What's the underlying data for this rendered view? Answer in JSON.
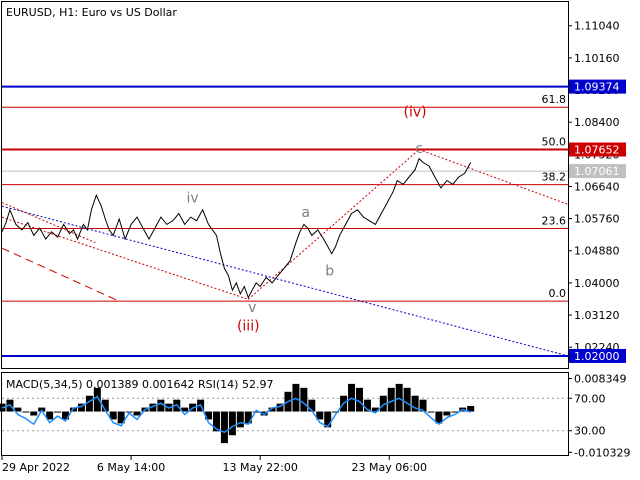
{
  "header": {
    "title": "EURUSD, H1:  Euro vs US Dollar"
  },
  "chart_data": {
    "type": "line",
    "symbol": "EURUSD",
    "timeframe": "H1",
    "description": "Euro vs US Dollar",
    "ylim": [
      1.0167,
      1.1169
    ],
    "price_ticks": [
      "1.11040",
      "1.10160",
      "1.09280",
      "1.08400",
      "1.07520",
      "1.06640",
      "1.05760",
      "1.04880",
      "1.04000",
      "1.03120",
      "1.02240"
    ],
    "time_labels": [
      {
        "label": "29 Apr 2022",
        "t": 0
      },
      {
        "label": "6 May 14:00",
        "t": 130
      },
      {
        "label": "13 May 22:00",
        "t": 260
      },
      {
        "label": "23 May 06:00",
        "t": 390
      }
    ],
    "t_range": [
      0,
      570
    ],
    "price_series": [
      [
        0,
        1.054
      ],
      [
        4,
        1.0565
      ],
      [
        8,
        1.06
      ],
      [
        14,
        1.056
      ],
      [
        20,
        1.0545
      ],
      [
        26,
        1.0565
      ],
      [
        32,
        1.053
      ],
      [
        38,
        1.055
      ],
      [
        44,
        1.052
      ],
      [
        50,
        1.054
      ],
      [
        56,
        1.0525
      ],
      [
        62,
        1.056
      ],
      [
        68,
        1.0535
      ],
      [
        72,
        1.0545
      ],
      [
        76,
        1.052
      ],
      [
        82,
        1.056
      ],
      [
        86,
        1.0545
      ],
      [
        90,
        1.06
      ],
      [
        95,
        1.064
      ],
      [
        100,
        1.061
      ],
      [
        104,
        1.0575
      ],
      [
        108,
        1.0545
      ],
      [
        112,
        1.053
      ],
      [
        118,
        1.0575
      ],
      [
        124,
        1.052
      ],
      [
        130,
        1.056
      ],
      [
        136,
        1.058
      ],
      [
        142,
        1.055
      ],
      [
        148,
        1.052
      ],
      [
        154,
        1.055
      ],
      [
        160,
        1.058
      ],
      [
        166,
        1.056
      ],
      [
        172,
        1.057
      ],
      [
        178,
        1.059
      ],
      [
        184,
        1.056
      ],
      [
        190,
        1.058
      ],
      [
        196,
        1.057
      ],
      [
        202,
        1.06
      ],
      [
        208,
        1.056
      ],
      [
        212,
        1.0545
      ],
      [
        216,
        1.053
      ],
      [
        220,
        1.048
      ],
      [
        224,
        1.044
      ],
      [
        228,
        1.042
      ],
      [
        232,
        1.038
      ],
      [
        236,
        1.04
      ],
      [
        240,
        1.037
      ],
      [
        244,
        1.039
      ],
      [
        248,
        1.036
      ],
      [
        252,
        1.038
      ],
      [
        256,
        1.04
      ],
      [
        260,
        1.039
      ],
      [
        266,
        1.0415
      ],
      [
        272,
        1.04
      ],
      [
        278,
        1.042
      ],
      [
        284,
        1.044
      ],
      [
        290,
        1.046
      ],
      [
        296,
        1.051
      ],
      [
        300,
        1.054
      ],
      [
        304,
        1.056
      ],
      [
        308,
        1.055
      ],
      [
        312,
        1.053
      ],
      [
        318,
        1.0545
      ],
      [
        324,
        1.052
      ],
      [
        328,
        1.05
      ],
      [
        332,
        1.048
      ],
      [
        336,
        1.05
      ],
      [
        340,
        1.053
      ],
      [
        346,
        1.056
      ],
      [
        352,
        1.059
      ],
      [
        358,
        1.06
      ],
      [
        364,
        1.058
      ],
      [
        370,
        1.057
      ],
      [
        376,
        1.056
      ],
      [
        382,
        1.059
      ],
      [
        388,
        1.062
      ],
      [
        394,
        1.065
      ],
      [
        398,
        1.068
      ],
      [
        404,
        1.067
      ],
      [
        410,
        1.069
      ],
      [
        416,
        1.071
      ],
      [
        420,
        1.074
      ],
      [
        424,
        1.073
      ],
      [
        430,
        1.072
      ],
      [
        436,
        1.069
      ],
      [
        442,
        1.066
      ],
      [
        448,
        1.068
      ],
      [
        454,
        1.067
      ],
      [
        460,
        1.069
      ],
      [
        466,
        1.07
      ],
      [
        472,
        1.073
      ]
    ],
    "horizontal_levels": [
      {
        "price": 1.09374,
        "label": "1.09374",
        "color": "#0000cc"
      },
      {
        "price": 1.07652,
        "label": "1.07652",
        "color": "#cc0000"
      },
      {
        "price": 1.02,
        "label": "1.02000",
        "color": "#0000cc"
      }
    ],
    "current_price": {
      "price": 1.07061,
      "label": "1.07061",
      "color": "#c0c0c0"
    },
    "fibonacci": {
      "color": "#cc0000",
      "levels": [
        {
          "ratio": "61.8",
          "price": 1.0881
        },
        {
          "ratio": "50.0",
          "price": 1.07652
        },
        {
          "ratio": "38.2",
          "price": 1.0669
        },
        {
          "ratio": "23.6",
          "price": 1.0549
        },
        {
          "ratio": "0.0",
          "price": 1.035
        }
      ]
    },
    "wave_labels": [
      {
        "text": "(iv)",
        "t": 416,
        "price": 1.0855,
        "color": "#cc0000"
      },
      {
        "text": "(iii)",
        "t": 248,
        "price": 1.027,
        "color": "#cc0000"
      },
      {
        "text": "iv",
        "t": 192,
        "price": 1.062,
        "color": "#808080"
      },
      {
        "text": "v",
        "t": 252,
        "price": 1.032,
        "color": "#808080"
      },
      {
        "text": "a",
        "t": 306,
        "price": 1.058,
        "color": "#808080"
      },
      {
        "text": "b",
        "t": 330,
        "price": 1.042,
        "color": "#808080"
      },
      {
        "text": "c",
        "t": 420,
        "price": 1.0755,
        "color": "#808080"
      }
    ],
    "trend_lines": [
      {
        "color": "#0000cc",
        "style": "dotted",
        "t1": 0,
        "p1": 1.061,
        "t2": 570,
        "p2": 1.02
      },
      {
        "color": "#cc0000",
        "style": "dotted",
        "t1": 0,
        "p1": 1.058,
        "t2": 248,
        "p2": 1.0355
      },
      {
        "color": "#cc0000",
        "style": "dotted",
        "t1": 248,
        "p1": 1.0355,
        "t2": 420,
        "p2": 1.0765
      },
      {
        "color": "#cc0000",
        "style": "dotted",
        "t1": 420,
        "p1": 1.0765,
        "t2": 570,
        "p2": 1.0615
      },
      {
        "color": "#cc0000",
        "style": "dashed",
        "t1": 0,
        "p1": 1.0495,
        "t2": 118,
        "p2": 1.035
      },
      {
        "color": "#cc0000",
        "style": "dotted",
        "t1": 0,
        "p1": 1.062,
        "t2": 94,
        "p2": 1.051
      }
    ],
    "indicator": {
      "label": "MACD(5,34,5) 0.001389 0.001642 RSI(14) 52.97",
      "ylim": [
        -0.011,
        0.0095
      ],
      "ticks": [
        "0.008349",
        "70.00",
        "30.00",
        "-0.010329"
      ],
      "macd_color": "#000000",
      "rsi_color": "#1e90ff",
      "macd_series": [
        [
          0,
          0.002
        ],
        [
          8,
          0.003
        ],
        [
          16,
          0.001
        ],
        [
          24,
          0.0
        ],
        [
          32,
          -0.001
        ],
        [
          40,
          0.001
        ],
        [
          48,
          -0.002
        ],
        [
          56,
          0.0
        ],
        [
          64,
          -0.002
        ],
        [
          72,
          0.001
        ],
        [
          80,
          0.002
        ],
        [
          88,
          0.004
        ],
        [
          96,
          0.006
        ],
        [
          104,
          0.003
        ],
        [
          112,
          -0.002
        ],
        [
          120,
          -0.003
        ],
        [
          128,
          0.0
        ],
        [
          136,
          -0.001
        ],
        [
          144,
          0.001
        ],
        [
          152,
          0.002
        ],
        [
          160,
          0.003
        ],
        [
          168,
          0.002
        ],
        [
          176,
          0.003
        ],
        [
          184,
          0.001
        ],
        [
          192,
          0.002
        ],
        [
          200,
          0.003
        ],
        [
          208,
          -0.002
        ],
        [
          216,
          -0.005
        ],
        [
          224,
          -0.008
        ],
        [
          232,
          -0.006
        ],
        [
          240,
          -0.004
        ],
        [
          248,
          -0.003
        ],
        [
          256,
          0.0
        ],
        [
          264,
          -0.001
        ],
        [
          272,
          0.001
        ],
        [
          280,
          0.002
        ],
        [
          288,
          0.005
        ],
        [
          296,
          0.007
        ],
        [
          304,
          0.006
        ],
        [
          312,
          0.003
        ],
        [
          320,
          -0.002
        ],
        [
          328,
          -0.004
        ],
        [
          336,
          0.0
        ],
        [
          344,
          0.004
        ],
        [
          352,
          0.007
        ],
        [
          360,
          0.006
        ],
        [
          368,
          0.003
        ],
        [
          376,
          0.001
        ],
        [
          384,
          0.004
        ],
        [
          392,
          0.006
        ],
        [
          400,
          0.007
        ],
        [
          408,
          0.006
        ],
        [
          416,
          0.004
        ],
        [
          424,
          0.003
        ],
        [
          432,
          0.0
        ],
        [
          440,
          -0.003
        ],
        [
          448,
          -0.001
        ],
        [
          456,
          0.0
        ],
        [
          464,
          0.001
        ],
        [
          472,
          0.0014
        ]
      ],
      "rsi_series": [
        [
          0,
          58
        ],
        [
          8,
          62
        ],
        [
          16,
          50
        ],
        [
          24,
          45
        ],
        [
          32,
          38
        ],
        [
          40,
          55
        ],
        [
          48,
          40
        ],
        [
          56,
          48
        ],
        [
          64,
          42
        ],
        [
          72,
          58
        ],
        [
          80,
          60
        ],
        [
          88,
          66
        ],
        [
          96,
          72
        ],
        [
          104,
          55
        ],
        [
          112,
          40
        ],
        [
          120,
          36
        ],
        [
          128,
          52
        ],
        [
          136,
          44
        ],
        [
          144,
          56
        ],
        [
          152,
          60
        ],
        [
          160,
          64
        ],
        [
          168,
          58
        ],
        [
          176,
          62
        ],
        [
          184,
          50
        ],
        [
          192,
          58
        ],
        [
          200,
          62
        ],
        [
          208,
          40
        ],
        [
          216,
          32
        ],
        [
          224,
          28
        ],
        [
          232,
          35
        ],
        [
          240,
          40
        ],
        [
          248,
          38
        ],
        [
          256,
          55
        ],
        [
          264,
          50
        ],
        [
          272,
          58
        ],
        [
          280,
          60
        ],
        [
          288,
          66
        ],
        [
          296,
          70
        ],
        [
          304,
          64
        ],
        [
          312,
          55
        ],
        [
          320,
          40
        ],
        [
          328,
          35
        ],
        [
          336,
          50
        ],
        [
          344,
          64
        ],
        [
          352,
          70
        ],
        [
          360,
          66
        ],
        [
          368,
          56
        ],
        [
          376,
          52
        ],
        [
          384,
          62
        ],
        [
          392,
          66
        ],
        [
          400,
          70
        ],
        [
          408,
          64
        ],
        [
          416,
          58
        ],
        [
          424,
          55
        ],
        [
          432,
          46
        ],
        [
          440,
          38
        ],
        [
          448,
          46
        ],
        [
          456,
          50
        ],
        [
          464,
          56
        ],
        [
          472,
          53
        ]
      ]
    }
  }
}
